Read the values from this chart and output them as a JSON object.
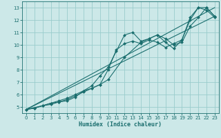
{
  "xlabel": "Humidex (Indice chaleur)",
  "bg_color": "#cce8e8",
  "grid_color": "#99cccc",
  "line_color": "#1a6e6e",
  "marker_color": "#1a6e6e",
  "xlim": [
    -0.5,
    23.5
  ],
  "ylim": [
    4.5,
    13.5
  ],
  "xticks": [
    0,
    1,
    2,
    3,
    4,
    5,
    6,
    7,
    8,
    9,
    10,
    11,
    12,
    13,
    14,
    15,
    16,
    17,
    18,
    19,
    20,
    21,
    22,
    23
  ],
  "yticks": [
    5,
    6,
    7,
    8,
    9,
    10,
    11,
    12,
    13
  ],
  "series": [
    {
      "x": [
        0,
        1,
        2,
        3,
        4,
        5,
        6,
        7,
        8,
        9,
        10,
        11,
        12,
        13,
        14,
        15,
        16,
        17,
        18,
        19,
        20,
        21,
        22,
        23
      ],
      "y": [
        4.8,
        4.9,
        5.1,
        5.2,
        5.4,
        5.5,
        5.8,
        6.3,
        6.7,
        7.5,
        8.2,
        9.5,
        10.8,
        11.0,
        10.3,
        10.5,
        10.8,
        10.2,
        9.7,
        10.4,
        12.2,
        13.0,
        13.0,
        12.3
      ],
      "has_marker": true
    },
    {
      "x": [
        0,
        1,
        2,
        3,
        4,
        5,
        6,
        7,
        8,
        9,
        10,
        11,
        12,
        13,
        14,
        15,
        16,
        17,
        18,
        19,
        20,
        21,
        22,
        23
      ],
      "y": [
        4.8,
        4.9,
        5.1,
        5.3,
        5.4,
        5.6,
        5.9,
        6.2,
        6.5,
        6.8,
        8.0,
        9.6,
        10.1,
        10.3,
        10.1,
        10.4,
        10.2,
        9.8,
        10.1,
        10.4,
        12.0,
        13.0,
        12.8,
        12.2
      ],
      "has_marker": true
    },
    {
      "x": [
        0,
        2,
        3,
        4,
        5,
        6,
        7,
        8,
        9,
        10,
        12,
        14,
        15,
        16,
        17,
        18,
        19,
        20,
        21,
        22,
        23
      ],
      "y": [
        4.8,
        5.1,
        5.3,
        5.5,
        5.7,
        6.0,
        6.3,
        6.5,
        6.8,
        7.2,
        9.0,
        10.2,
        10.5,
        10.8,
        10.5,
        10.0,
        10.2,
        11.5,
        12.2,
        13.0,
        12.3
      ],
      "has_marker": true
    },
    {
      "x": [
        0,
        23
      ],
      "y": [
        4.8,
        12.3
      ],
      "has_marker": false
    },
    {
      "x": [
        0,
        23
      ],
      "y": [
        4.8,
        13.0
      ],
      "has_marker": false
    }
  ]
}
